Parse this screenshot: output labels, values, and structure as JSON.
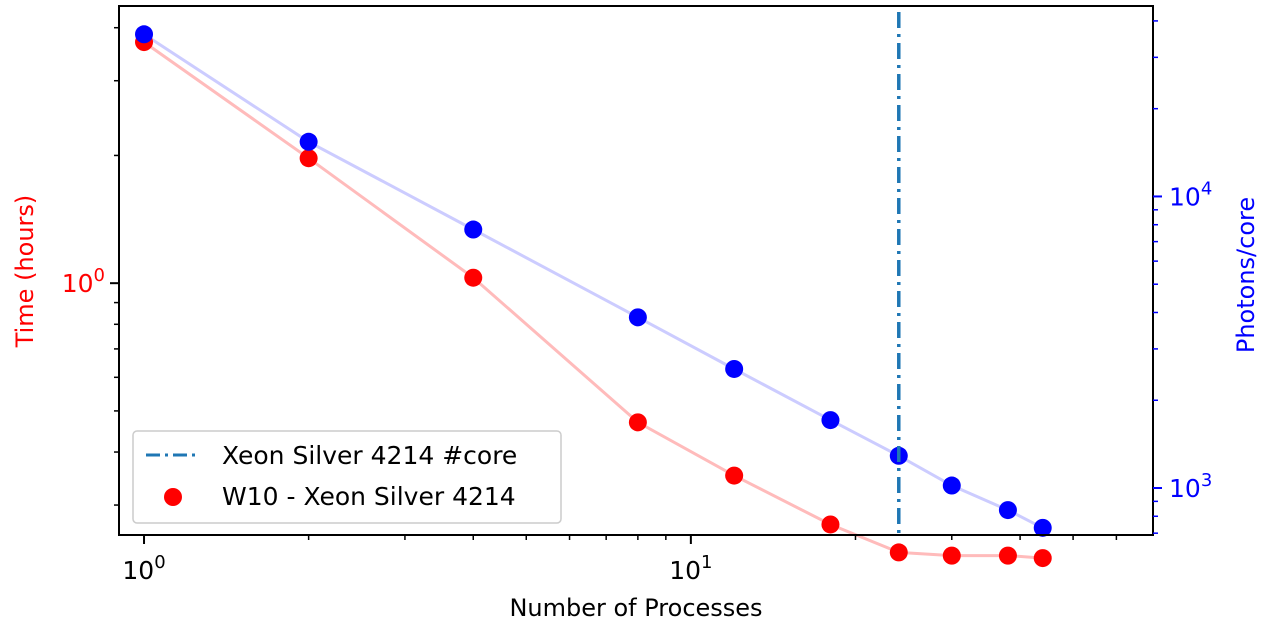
{
  "chart_data": {
    "type": "scatter",
    "x_axis": {
      "label": "Number of Processes",
      "scale": "log",
      "range": [
        0.9,
        70
      ],
      "major_ticks": [
        {
          "value": 1,
          "base": "10",
          "exp": "0"
        },
        {
          "value": 10,
          "base": "10",
          "exp": "1"
        }
      ]
    },
    "y_left": {
      "label": "Time (hours)",
      "scale": "log",
      "range": [
        0.255,
        4.5
      ],
      "color": "#ff0000",
      "major_ticks": [
        {
          "value": 1,
          "base": "10",
          "exp": "0"
        }
      ]
    },
    "y_right": {
      "label": "Photons/core",
      "scale": "log",
      "range": [
        690,
        45000
      ],
      "color": "#0000ff",
      "major_ticks": [
        {
          "value": 1000,
          "base": "10",
          "exp": "3"
        },
        {
          "value": 10000,
          "base": "10",
          "exp": "4"
        }
      ]
    },
    "vline": {
      "x": 24,
      "color": "#1f77b4",
      "label": "Xeon Silver 4214 #core"
    },
    "series": [
      {
        "name": "W10 - Xeon Silver 4214",
        "axis": "left",
        "color": "#ff0000",
        "line_color": "#ffbbbb",
        "x": [
          1,
          2,
          4,
          8,
          12,
          18,
          24,
          30,
          38,
          44
        ],
        "y": [
          3.7,
          1.97,
          1.03,
          0.47,
          0.352,
          0.27,
          0.232,
          0.228,
          0.228,
          0.225
        ]
      },
      {
        "name": "",
        "axis": "right",
        "color": "#0000ff",
        "line_color": "#ccccff",
        "x": [
          1,
          2,
          4,
          8,
          12,
          18,
          24,
          30,
          38,
          44
        ],
        "y": [
          36000,
          15400,
          7700,
          3850,
          2560,
          1710,
          1290,
          1020,
          840,
          730
        ]
      }
    ]
  }
}
